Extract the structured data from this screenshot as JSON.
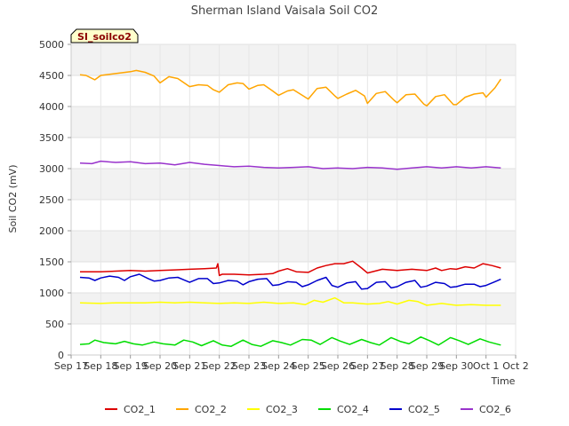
{
  "chart_data": {
    "type": "line",
    "title": "Sherman Island Vaisala Soil CO2",
    "badge": "SI_soilco2",
    "xlabel": "Time",
    "ylabel": "Soil CO2 (mV)",
    "xlim": [
      0,
      15
    ],
    "ylim": [
      0,
      5000
    ],
    "x_ticks": [
      {
        "x": 0,
        "label": "Sep 17"
      },
      {
        "x": 1,
        "label": "Sep 18"
      },
      {
        "x": 2,
        "label": "Sep 19"
      },
      {
        "x": 3,
        "label": "Sep 20"
      },
      {
        "x": 4,
        "label": "Sep 21"
      },
      {
        "x": 5,
        "label": "Sep 22"
      },
      {
        "x": 6,
        "label": "Sep 23"
      },
      {
        "x": 7,
        "label": "Sep 24"
      },
      {
        "x": 8,
        "label": "Sep 25"
      },
      {
        "x": 9,
        "label": "Sep 26"
      },
      {
        "x": 10,
        "label": "Sep 27"
      },
      {
        "x": 11,
        "label": "Sep 28"
      },
      {
        "x": 12,
        "label": "Sep 29"
      },
      {
        "x": 13,
        "label": "Sep 30"
      },
      {
        "x": 14,
        "label": "Oct 1"
      },
      {
        "x": 15,
        "label": "Oct 2"
      }
    ],
    "y_ticks": [
      0,
      500,
      1000,
      1500,
      2000,
      2500,
      3000,
      3500,
      4000,
      4500,
      5000
    ],
    "grid": true,
    "legend_position": "bottom",
    "series": [
      {
        "name": "CO2_1",
        "color": "#dd0000",
        "x": [
          0.3,
          1,
          1.5,
          2,
          2.5,
          3,
          3.5,
          4,
          4.5,
          4.9,
          4.95,
          5.0,
          5.1,
          5.5,
          6,
          6.5,
          6.8,
          7,
          7.3,
          7.6,
          8,
          8.3,
          8.6,
          8.9,
          9.2,
          9.5,
          9.8,
          10,
          10.5,
          11,
          11.5,
          12,
          12.3,
          12.5,
          12.8,
          13,
          13.3,
          13.6,
          13.9,
          14.2,
          14.5
        ],
        "y": [
          1340,
          1340,
          1350,
          1360,
          1350,
          1360,
          1370,
          1380,
          1390,
          1400,
          1470,
          1280,
          1300,
          1300,
          1290,
          1300,
          1310,
          1350,
          1390,
          1340,
          1330,
          1400,
          1440,
          1470,
          1470,
          1510,
          1400,
          1320,
          1380,
          1360,
          1380,
          1360,
          1400,
          1360,
          1390,
          1380,
          1420,
          1400,
          1470,
          1440,
          1400
        ]
      },
      {
        "name": "CO2_2",
        "color": "#ffa500",
        "x": [
          0.3,
          0.5,
          0.8,
          1,
          1.5,
          2,
          2.2,
          2.5,
          2.8,
          3,
          3.3,
          3.6,
          4,
          4.3,
          4.6,
          4.8,
          5,
          5.3,
          5.6,
          5.8,
          6,
          6.3,
          6.5,
          6.8,
          7,
          7.3,
          7.5,
          7.8,
          8,
          8.3,
          8.6,
          8.9,
          9,
          9.3,
          9.6,
          9.9,
          10,
          10.3,
          10.6,
          10.9,
          11,
          11.3,
          11.6,
          11.9,
          12,
          12.3,
          12.6,
          12.9,
          13,
          13.3,
          13.6,
          13.9,
          14,
          14.3,
          14.5
        ],
        "y": [
          4510,
          4500,
          4430,
          4500,
          4530,
          4560,
          4580,
          4550,
          4490,
          4380,
          4480,
          4450,
          4320,
          4350,
          4340,
          4270,
          4230,
          4350,
          4380,
          4370,
          4280,
          4340,
          4350,
          4250,
          4180,
          4250,
          4270,
          4180,
          4120,
          4290,
          4310,
          4170,
          4130,
          4200,
          4260,
          4170,
          4050,
          4210,
          4240,
          4100,
          4060,
          4190,
          4200,
          4040,
          4010,
          4160,
          4190,
          4030,
          4030,
          4150,
          4200,
          4220,
          4150,
          4300,
          4440
        ]
      },
      {
        "name": "CO2_3",
        "color": "#ffff00",
        "x": [
          0.3,
          1,
          1.5,
          2,
          2.5,
          3,
          3.5,
          4,
          4.5,
          5,
          5.5,
          6,
          6.5,
          7,
          7.5,
          7.9,
          8.2,
          8.5,
          8.9,
          9.2,
          9.5,
          10,
          10.4,
          10.7,
          11,
          11.4,
          11.7,
          12,
          12.5,
          13,
          13.5,
          14,
          14.5
        ],
        "y": [
          840,
          830,
          840,
          840,
          840,
          850,
          840,
          850,
          840,
          830,
          840,
          830,
          850,
          830,
          840,
          810,
          880,
          850,
          920,
          840,
          840,
          820,
          830,
          860,
          820,
          880,
          860,
          800,
          830,
          800,
          810,
          800,
          800
        ]
      },
      {
        "name": "CO2_4",
        "color": "#00dd00",
        "x": [
          0.3,
          0.6,
          0.8,
          1.1,
          1.5,
          1.8,
          2.1,
          2.4,
          2.8,
          3.1,
          3.5,
          3.8,
          4.1,
          4.4,
          4.8,
          5.1,
          5.4,
          5.8,
          6.1,
          6.4,
          6.8,
          7.1,
          7.4,
          7.8,
          8.1,
          8.4,
          8.8,
          9.1,
          9.4,
          9.8,
          10.1,
          10.4,
          10.8,
          11.1,
          11.4,
          11.8,
          12.1,
          12.4,
          12.8,
          13.1,
          13.4,
          13.8,
          14.1,
          14.5
        ],
        "y": [
          170,
          180,
          240,
          200,
          180,
          220,
          180,
          160,
          210,
          180,
          160,
          240,
          210,
          150,
          230,
          160,
          140,
          240,
          170,
          140,
          230,
          200,
          160,
          250,
          240,
          170,
          280,
          220,
          170,
          250,
          200,
          160,
          280,
          220,
          180,
          290,
          230,
          160,
          280,
          230,
          170,
          260,
          210,
          160
        ]
      },
      {
        "name": "CO2_5",
        "color": "#0000cc",
        "x": [
          0.3,
          0.6,
          0.8,
          1,
          1.3,
          1.6,
          1.8,
          2,
          2.3,
          2.6,
          2.8,
          3,
          3.3,
          3.6,
          3.8,
          4,
          4.3,
          4.6,
          4.8,
          5,
          5.3,
          5.6,
          5.8,
          6,
          6.3,
          6.6,
          6.8,
          7,
          7.3,
          7.6,
          7.8,
          8,
          8.3,
          8.6,
          8.8,
          9,
          9.3,
          9.6,
          9.8,
          10,
          10.3,
          10.6,
          10.8,
          11,
          11.3,
          11.6,
          11.8,
          12,
          12.3,
          12.6,
          12.8,
          13,
          13.3,
          13.6,
          13.8,
          14,
          14.3,
          14.5
        ],
        "y": [
          1250,
          1240,
          1200,
          1240,
          1270,
          1250,
          1200,
          1260,
          1300,
          1230,
          1190,
          1200,
          1240,
          1250,
          1210,
          1170,
          1230,
          1230,
          1150,
          1160,
          1200,
          1190,
          1130,
          1180,
          1220,
          1230,
          1120,
          1130,
          1180,
          1170,
          1100,
          1130,
          1200,
          1250,
          1120,
          1090,
          1160,
          1180,
          1060,
          1070,
          1170,
          1180,
          1080,
          1100,
          1170,
          1200,
          1090,
          1110,
          1170,
          1150,
          1090,
          1100,
          1140,
          1140,
          1100,
          1120,
          1180,
          1220
        ]
      },
      {
        "name": "CO2_6",
        "color": "#9933cc",
        "x": [
          0.3,
          0.7,
          1,
          1.5,
          2,
          2.5,
          3,
          3.5,
          4,
          4.5,
          5,
          5.5,
          6,
          6.5,
          7,
          7.5,
          8,
          8.5,
          9,
          9.5,
          10,
          10.5,
          11,
          11.5,
          12,
          12.5,
          13,
          13.5,
          14,
          14.5
        ],
        "y": [
          3090,
          3080,
          3120,
          3100,
          3110,
          3080,
          3090,
          3060,
          3100,
          3070,
          3050,
          3030,
          3040,
          3020,
          3010,
          3020,
          3030,
          3000,
          3010,
          3000,
          3020,
          3010,
          2990,
          3010,
          3030,
          3010,
          3030,
          3010,
          3030,
          3010
        ]
      }
    ]
  }
}
